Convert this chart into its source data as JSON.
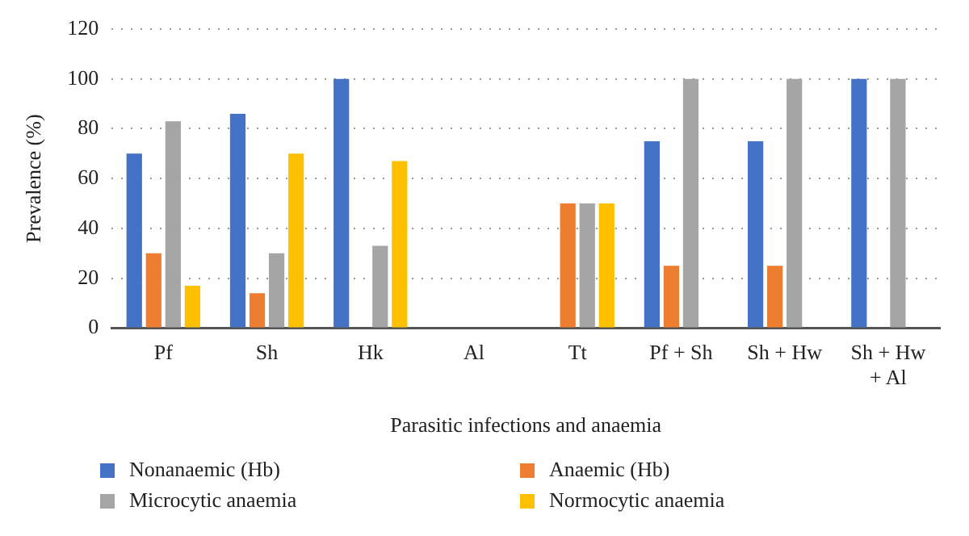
{
  "chart_data": {
    "type": "bar",
    "xlabel": "Parasitic infections and anaemia",
    "ylabel": "Prevalence (%)",
    "categories": [
      "Pf",
      "Sh",
      "Hk",
      "Al",
      "Tt",
      "Pf + Sh",
      "Sh + Hw",
      "Sh + Hw + Al"
    ],
    "series": [
      {
        "name": "Nonanaemic (Hb)",
        "color": "#4472c4",
        "values": [
          70,
          86,
          100,
          0,
          0,
          75,
          75,
          100
        ]
      },
      {
        "name": "Anaemic (Hb)",
        "color": "#ed7d31",
        "values": [
          30,
          14,
          0,
          0,
          50,
          25,
          25,
          0
        ]
      },
      {
        "name": "Microcytic anaemia",
        "color": "#a5a5a5",
        "values": [
          83,
          30,
          33,
          0,
          50,
          100,
          100,
          100
        ]
      },
      {
        "name": "Normocytic anaemia",
        "color": "#ffc000",
        "values": [
          17,
          70,
          67,
          0,
          50,
          0,
          0,
          0
        ]
      }
    ],
    "ylim": [
      0,
      120
    ],
    "yticks": [
      0,
      20,
      40,
      60,
      80,
      100,
      120
    ],
    "grid": "y",
    "legend": "bottom"
  }
}
